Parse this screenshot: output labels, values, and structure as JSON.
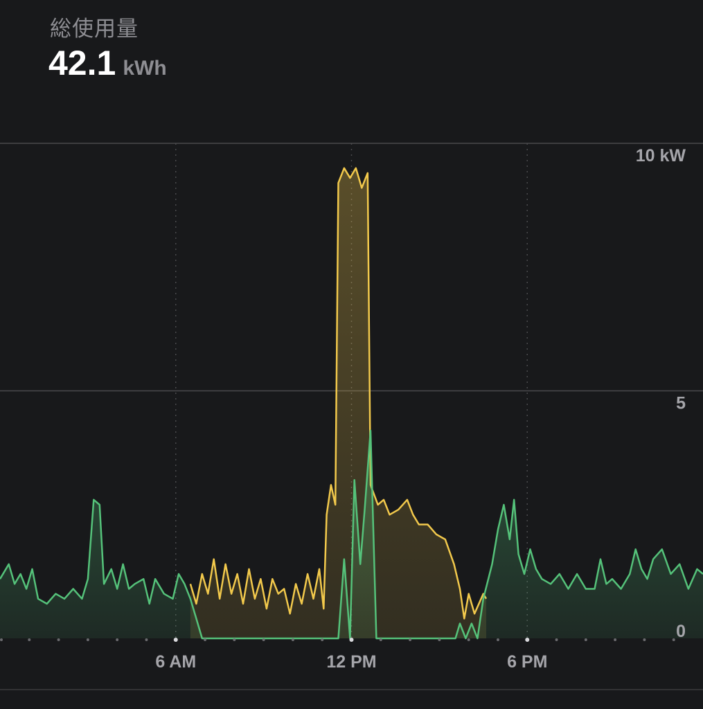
{
  "header": {
    "title": "総使用量",
    "total_value": "42.1",
    "total_unit": "kWh"
  },
  "colors": {
    "background": "#18191b",
    "grid": "#4a4a4d",
    "consumption": "#f2c94c",
    "solar": "#55c27a",
    "tick_text": "#a5a5aa"
  },
  "chart_data": {
    "type": "area",
    "x_unit": "hour",
    "xlim": [
      0,
      24
    ],
    "ylim": [
      0,
      10
    ],
    "x_ticks": [
      {
        "x": 6,
        "label": "6 AM"
      },
      {
        "x": 12,
        "label": "12 PM"
      },
      {
        "x": 18,
        "label": "6 PM"
      }
    ],
    "y_ticks": [
      {
        "y": 10,
        "label": "10 kW"
      },
      {
        "y": 5,
        "label": "5"
      },
      {
        "y": 0,
        "label": "0"
      }
    ],
    "series": [
      {
        "color": "#f2c94c",
        "points": [
          [
            6.5,
            1.1
          ],
          [
            6.7,
            0.7
          ],
          [
            6.9,
            1.3
          ],
          [
            7.1,
            0.9
          ],
          [
            7.3,
            1.6
          ],
          [
            7.5,
            0.8
          ],
          [
            7.7,
            1.5
          ],
          [
            7.9,
            0.9
          ],
          [
            8.1,
            1.3
          ],
          [
            8.3,
            0.7
          ],
          [
            8.5,
            1.4
          ],
          [
            8.7,
            0.8
          ],
          [
            8.9,
            1.2
          ],
          [
            9.1,
            0.6
          ],
          [
            9.3,
            1.2
          ],
          [
            9.5,
            0.9
          ],
          [
            9.7,
            1.0
          ],
          [
            9.9,
            0.5
          ],
          [
            10.1,
            1.1
          ],
          [
            10.3,
            0.7
          ],
          [
            10.5,
            1.3
          ],
          [
            10.7,
            0.8
          ],
          [
            10.9,
            1.4
          ],
          [
            11.05,
            0.6
          ],
          [
            11.15,
            2.5
          ],
          [
            11.3,
            3.1
          ],
          [
            11.45,
            2.7
          ],
          [
            11.55,
            9.2
          ],
          [
            11.75,
            9.5
          ],
          [
            11.95,
            9.3
          ],
          [
            12.15,
            9.5
          ],
          [
            12.35,
            9.1
          ],
          [
            12.55,
            9.4
          ],
          [
            12.65,
            3.1
          ],
          [
            12.9,
            2.7
          ],
          [
            13.1,
            2.8
          ],
          [
            13.3,
            2.5
          ],
          [
            13.6,
            2.6
          ],
          [
            13.9,
            2.8
          ],
          [
            14.1,
            2.5
          ],
          [
            14.3,
            2.3
          ],
          [
            14.6,
            2.3
          ],
          [
            14.9,
            2.1
          ],
          [
            15.2,
            2.0
          ],
          [
            15.5,
            1.5
          ],
          [
            15.7,
            1.0
          ],
          [
            15.85,
            0.4
          ],
          [
            16.0,
            0.9
          ],
          [
            16.2,
            0.5
          ],
          [
            16.5,
            0.9
          ],
          [
            16.6,
            0.8
          ]
        ]
      },
      {
        "color": "#55c27a",
        "points": [
          [
            0,
            1.2
          ],
          [
            0.3,
            1.5
          ],
          [
            0.5,
            1.1
          ],
          [
            0.7,
            1.3
          ],
          [
            0.9,
            1.0
          ],
          [
            1.1,
            1.4
          ],
          [
            1.3,
            0.8
          ],
          [
            1.6,
            0.7
          ],
          [
            1.9,
            0.9
          ],
          [
            2.2,
            0.8
          ],
          [
            2.5,
            1.0
          ],
          [
            2.8,
            0.8
          ],
          [
            3.0,
            1.2
          ],
          [
            3.2,
            2.8
          ],
          [
            3.4,
            2.7
          ],
          [
            3.55,
            1.1
          ],
          [
            3.8,
            1.4
          ],
          [
            4.0,
            1.0
          ],
          [
            4.2,
            1.5
          ],
          [
            4.4,
            1.0
          ],
          [
            4.6,
            1.1
          ],
          [
            4.9,
            1.2
          ],
          [
            5.1,
            0.7
          ],
          [
            5.3,
            1.2
          ],
          [
            5.6,
            0.9
          ],
          [
            5.9,
            0.8
          ],
          [
            6.1,
            1.3
          ],
          [
            6.3,
            1.1
          ],
          [
            6.5,
            0.8
          ],
          [
            6.7,
            0.4
          ],
          [
            6.9,
            0.0
          ],
          [
            11.55,
            0.0
          ],
          [
            11.75,
            1.6
          ],
          [
            11.95,
            0.0
          ],
          [
            12.1,
            3.2
          ],
          [
            12.3,
            1.5
          ],
          [
            12.45,
            2.6
          ],
          [
            12.65,
            4.2
          ],
          [
            12.85,
            0.0
          ],
          [
            15.55,
            0.0
          ],
          [
            15.7,
            0.3
          ],
          [
            15.9,
            0.0
          ],
          [
            16.1,
            0.3
          ],
          [
            16.3,
            0.0
          ],
          [
            16.5,
            0.8
          ],
          [
            16.8,
            1.5
          ],
          [
            17.0,
            2.2
          ],
          [
            17.2,
            2.7
          ],
          [
            17.4,
            2.0
          ],
          [
            17.55,
            2.8
          ],
          [
            17.7,
            1.7
          ],
          [
            17.9,
            1.3
          ],
          [
            18.1,
            1.8
          ],
          [
            18.3,
            1.4
          ],
          [
            18.5,
            1.2
          ],
          [
            18.8,
            1.1
          ],
          [
            19.1,
            1.3
          ],
          [
            19.4,
            1.0
          ],
          [
            19.7,
            1.3
          ],
          [
            20.0,
            1.0
          ],
          [
            20.3,
            1.0
          ],
          [
            20.5,
            1.6
          ],
          [
            20.7,
            1.1
          ],
          [
            20.9,
            1.2
          ],
          [
            21.2,
            1.0
          ],
          [
            21.5,
            1.3
          ],
          [
            21.7,
            1.8
          ],
          [
            21.9,
            1.4
          ],
          [
            22.1,
            1.2
          ],
          [
            22.3,
            1.6
          ],
          [
            22.6,
            1.8
          ],
          [
            22.9,
            1.3
          ],
          [
            23.2,
            1.5
          ],
          [
            23.5,
            1.0
          ],
          [
            23.8,
            1.4
          ],
          [
            24.0,
            1.3
          ]
        ]
      }
    ]
  }
}
